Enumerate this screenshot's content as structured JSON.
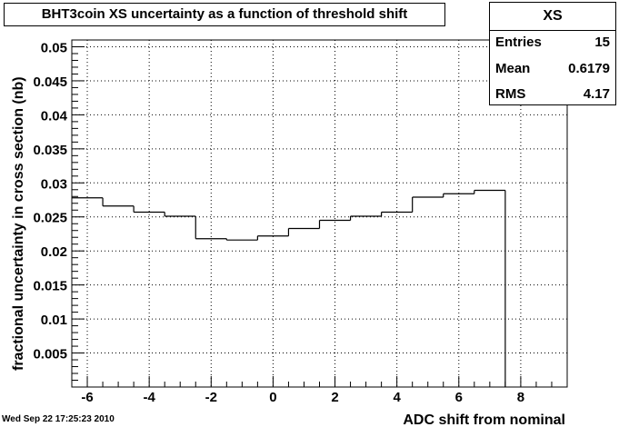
{
  "window": {
    "timestamp": "Wed Sep 22 17:25:23 2010"
  },
  "stats": {
    "title": "XS",
    "entries_label": "Entries",
    "entries_value": "15",
    "mean_label": "Mean",
    "mean_value": "0.6179",
    "rms_label": "RMS",
    "rms_value": "4.17"
  },
  "chart_data": {
    "type": "histogram",
    "title": "BHT3coin XS uncertainty as a function of threshold shift",
    "xlabel": "ADC shift from nominal",
    "ylabel": "fractional uncertainty in cross section (nb)",
    "xlim": [
      -6.5,
      9.5
    ],
    "ylim": [
      0,
      0.051
    ],
    "grid": true,
    "x_ticks": [
      -6,
      -4,
      -2,
      0,
      2,
      4,
      6,
      8
    ],
    "x_tick_labels": [
      "-6",
      "-4",
      "-2",
      "0",
      "2",
      "4",
      "6",
      "8"
    ],
    "y_ticks": [
      0.005,
      0.01,
      0.015,
      0.02,
      0.025,
      0.03,
      0.035,
      0.04,
      0.045,
      0.05
    ],
    "y_tick_labels": [
      "0.005",
      "0.01",
      "0.015",
      "0.02",
      "0.025",
      "0.03",
      "0.035",
      "0.04",
      "0.045",
      "0.05"
    ],
    "bin_width": 1,
    "bin_centers": [
      -6,
      -5,
      -4,
      -3,
      -2,
      -1,
      0,
      1,
      2,
      3,
      4,
      5,
      6,
      7
    ],
    "values": [
      0.0278,
      0.0266,
      0.0257,
      0.0251,
      0.0218,
      0.0216,
      0.0222,
      0.0233,
      0.0245,
      0.0251,
      0.0257,
      0.0279,
      0.0284,
      0.0289
    ]
  }
}
